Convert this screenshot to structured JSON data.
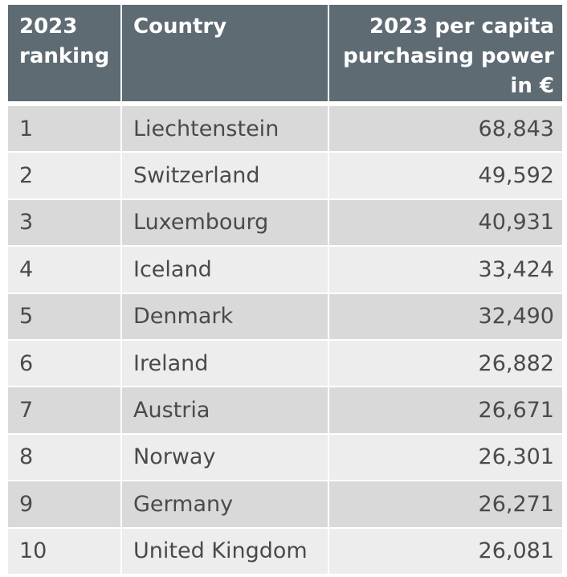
{
  "table": {
    "headers": [
      "2023 ranking",
      "Country",
      "2023 per capita purchasing power in €"
    ],
    "rows": [
      {
        "rank": "1",
        "country": "Liechtenstein",
        "value": "68,843"
      },
      {
        "rank": "2",
        "country": "Switzerland",
        "value": "49,592"
      },
      {
        "rank": "3",
        "country": "Luxembourg",
        "value": "40,931"
      },
      {
        "rank": "4",
        "country": "Iceland",
        "value": "33,424"
      },
      {
        "rank": "5",
        "country": "Denmark",
        "value": "32,490"
      },
      {
        "rank": "6",
        "country": "Ireland",
        "value": "26,882"
      },
      {
        "rank": "7",
        "country": "Austria",
        "value": "26,671"
      },
      {
        "rank": "8",
        "country": "Norway",
        "value": "26,301"
      },
      {
        "rank": "9",
        "country": "Germany",
        "value": "26,271"
      },
      {
        "rank": "10",
        "country": "United Kingdom",
        "value": "26,081"
      }
    ]
  },
  "colors": {
    "header_bg": "#5f6b72",
    "header_text": "#ffffff",
    "row_dark": "#d9d9d9",
    "row_light": "#ededed",
    "cell_text": "#4a4a4a"
  }
}
